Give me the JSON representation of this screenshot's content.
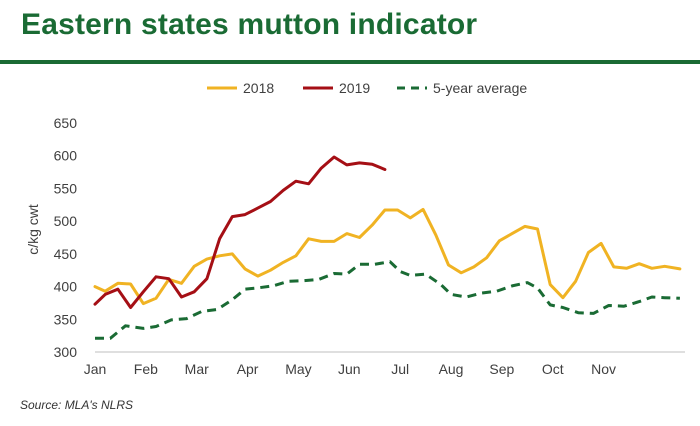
{
  "title": "Eastern states mutton indicator",
  "source": "Source: MLA's NLRS",
  "chart_data": {
    "type": "line",
    "ylabel": "c/kg cwt",
    "xlabel": "",
    "ylim": [
      300,
      650
    ],
    "yticks": [
      300,
      350,
      400,
      450,
      500,
      550,
      600,
      650
    ],
    "xlim": [
      0,
      11.6
    ],
    "xticks": [
      {
        "label": "Jan",
        "x": 0
      },
      {
        "label": "Feb",
        "x": 1
      },
      {
        "label": "Mar",
        "x": 2
      },
      {
        "label": "Apr",
        "x": 3
      },
      {
        "label": "May",
        "x": 4
      },
      {
        "label": "Jun",
        "x": 5
      },
      {
        "label": "Jul",
        "x": 6
      },
      {
        "label": "Aug",
        "x": 7
      },
      {
        "label": "Sep",
        "x": 8
      },
      {
        "label": "Oct",
        "x": 9
      },
      {
        "label": "Nov",
        "x": 10
      }
    ],
    "grid": false,
    "legend_position": "top-center",
    "x_units": "months from start of January",
    "series": [
      {
        "name": "2018",
        "color": "#f0b323",
        "dash": "solid",
        "points": [
          [
            0.0,
            400
          ],
          [
            0.2,
            393
          ],
          [
            0.45,
            405
          ],
          [
            0.7,
            404
          ],
          [
            0.95,
            374
          ],
          [
            1.2,
            382
          ],
          [
            1.45,
            411
          ],
          [
            1.7,
            405
          ],
          [
            1.95,
            431
          ],
          [
            2.2,
            442
          ],
          [
            2.45,
            447
          ],
          [
            2.7,
            450
          ],
          [
            2.95,
            427
          ],
          [
            3.2,
            416
          ],
          [
            3.45,
            425
          ],
          [
            3.7,
            437
          ],
          [
            3.95,
            447
          ],
          [
            4.2,
            473
          ],
          [
            4.45,
            469
          ],
          [
            4.7,
            469
          ],
          [
            4.95,
            481
          ],
          [
            5.2,
            475
          ],
          [
            5.45,
            494
          ],
          [
            5.7,
            517
          ],
          [
            5.95,
            517
          ],
          [
            6.2,
            505
          ],
          [
            6.45,
            518
          ],
          [
            6.7,
            479
          ],
          [
            6.95,
            433
          ],
          [
            7.2,
            421
          ],
          [
            7.45,
            430
          ],
          [
            7.7,
            444
          ],
          [
            7.95,
            470
          ],
          [
            8.2,
            481
          ],
          [
            8.45,
            492
          ],
          [
            8.7,
            488
          ],
          [
            8.95,
            403
          ],
          [
            9.2,
            383
          ],
          [
            9.45,
            408
          ],
          [
            9.7,
            452
          ],
          [
            9.95,
            466
          ],
          [
            10.2,
            430
          ],
          [
            10.45,
            428
          ],
          [
            10.7,
            435
          ],
          [
            10.95,
            428
          ],
          [
            11.2,
            431
          ],
          [
            11.5,
            427
          ]
        ]
      },
      {
        "name": "2019",
        "color": "#a50f15",
        "dash": "solid",
        "points": [
          [
            0.0,
            373
          ],
          [
            0.2,
            388
          ],
          [
            0.45,
            396
          ],
          [
            0.7,
            368
          ],
          [
            0.95,
            392
          ],
          [
            1.2,
            415
          ],
          [
            1.45,
            412
          ],
          [
            1.7,
            384
          ],
          [
            1.95,
            392
          ],
          [
            2.2,
            412
          ],
          [
            2.45,
            473
          ],
          [
            2.7,
            507
          ],
          [
            2.95,
            510
          ],
          [
            3.2,
            520
          ],
          [
            3.45,
            530
          ],
          [
            3.7,
            547
          ],
          [
            3.95,
            561
          ],
          [
            4.2,
            557
          ],
          [
            4.45,
            581
          ],
          [
            4.7,
            598
          ],
          [
            4.95,
            586
          ],
          [
            5.2,
            589
          ],
          [
            5.45,
            587
          ],
          [
            5.7,
            579
          ]
        ]
      },
      {
        "name": "5-year average",
        "color": "#1a6b34",
        "dash": "dashed",
        "points": [
          [
            0.0,
            321
          ],
          [
            0.3,
            321
          ],
          [
            0.6,
            340
          ],
          [
            0.95,
            336
          ],
          [
            1.2,
            339
          ],
          [
            1.5,
            349
          ],
          [
            1.8,
            351
          ],
          [
            2.1,
            362
          ],
          [
            2.4,
            365
          ],
          [
            2.7,
            380
          ],
          [
            2.95,
            396
          ],
          [
            3.2,
            398
          ],
          [
            3.5,
            401
          ],
          [
            3.8,
            408
          ],
          [
            4.1,
            409
          ],
          [
            4.4,
            411
          ],
          [
            4.7,
            420
          ],
          [
            4.95,
            419
          ],
          [
            5.2,
            434
          ],
          [
            5.5,
            434
          ],
          [
            5.8,
            438
          ],
          [
            6.0,
            423
          ],
          [
            6.2,
            417
          ],
          [
            6.5,
            419
          ],
          [
            6.8,
            403
          ],
          [
            7.0,
            388
          ],
          [
            7.3,
            384
          ],
          [
            7.6,
            390
          ],
          [
            7.9,
            393
          ],
          [
            8.2,
            401
          ],
          [
            8.5,
            406
          ],
          [
            8.7,
            398
          ],
          [
            8.95,
            372
          ],
          [
            9.2,
            368
          ],
          [
            9.5,
            360
          ],
          [
            9.8,
            359
          ],
          [
            10.1,
            371
          ],
          [
            10.4,
            370
          ],
          [
            10.7,
            377
          ],
          [
            10.95,
            384
          ],
          [
            11.2,
            383
          ],
          [
            11.5,
            382
          ]
        ]
      }
    ]
  }
}
